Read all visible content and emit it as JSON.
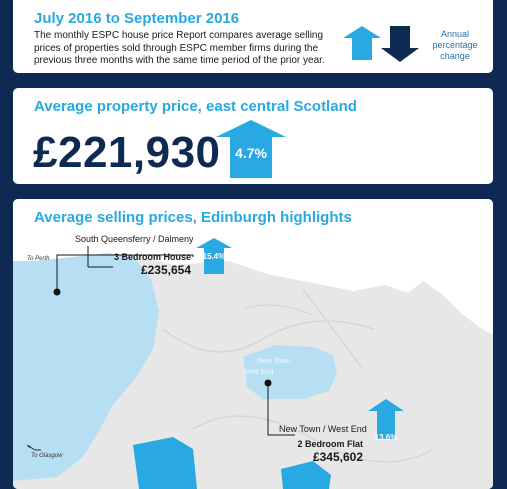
{
  "intro_panel": {
    "title": "July 2016 to September 2016",
    "description": "The monthly ESPC house price Report compares average selling prices of properties sold through ESPC member firms during the previous three months with the same time period of the prior year.",
    "legend_caption": "Annual percentage change"
  },
  "average_panel": {
    "title": "Average property price, east central Scotland",
    "price": "£221,930",
    "change": "4.7%"
  },
  "highlights_panel": {
    "title": "Average selling prices, Edinburgh highlights",
    "callouts": [
      {
        "area": "South Queensferry / Dalmeny",
        "property_type": "3 Bedroom House",
        "price": "£235,654",
        "change": "15.4%"
      },
      {
        "area": "New Town / West End",
        "property_type": "2 Bedroom Flat",
        "price": "£345,602",
        "change": "13.6%"
      }
    ],
    "map_labels": {
      "to_perth": "To Perth",
      "to_glasgow": "To Glasgow",
      "new_town": "New Town",
      "west_end": "West End"
    }
  },
  "colors": {
    "navy": "#0e2a52",
    "blue": "#29a9e1",
    "water": "#b7dff4",
    "land": "#e7e7e7"
  },
  "icons": [
    "up-arrow-icon",
    "down-arrow-icon",
    "pin-dot-icon",
    "left-arrow-icon"
  ]
}
